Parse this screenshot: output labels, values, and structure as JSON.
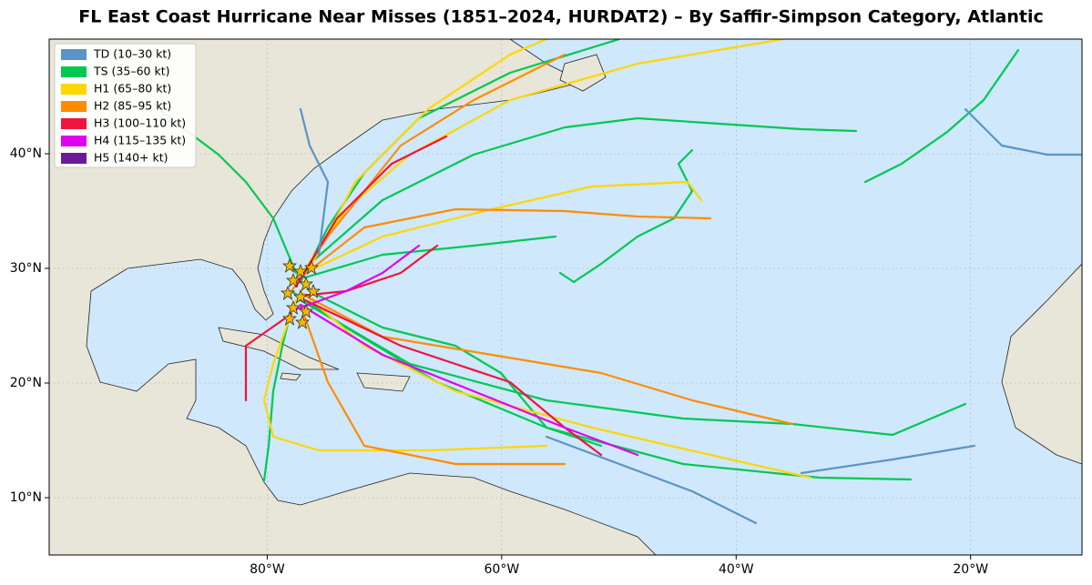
{
  "title": "FL East Coast Hurricane Near Misses (1851–2024, HURDAT2) – By Saffir-Simpson Category, Atlantic",
  "legend": [
    {
      "label": "TD (10–30 kt)",
      "color": "#5b93c7"
    },
    {
      "label": "TS (35–60 kt)",
      "color": "#00c853"
    },
    {
      "label": "H1 (65–80 kt)",
      "color": "#ffd600"
    },
    {
      "label": "H2 (85–95 kt)",
      "color": "#ff8c00"
    },
    {
      "label": "H3 (100–110 kt)",
      "color": "#f0143c"
    },
    {
      "label": "H4 (115–135 kt)",
      "color": "#e000f0"
    },
    {
      "label": "H5 (140+ kt)",
      "color": "#6a1b9a"
    }
  ],
  "map": {
    "xlim": [
      -98.6,
      -10.5
    ],
    "ylim": [
      5,
      50
    ],
    "grid": true,
    "xticks": [
      {
        "value": -80,
        "label": "80°W"
      },
      {
        "value": -60,
        "label": "60°W"
      },
      {
        "value": -40,
        "label": "40°W"
      },
      {
        "value": -20,
        "label": "20°W"
      }
    ],
    "yticks": [
      {
        "value": 10,
        "label": "10°N"
      },
      {
        "value": 20,
        "label": "20°N"
      },
      {
        "value": 30,
        "label": "30°N"
      },
      {
        "value": 40,
        "label": "40°N"
      }
    ]
  }
}
